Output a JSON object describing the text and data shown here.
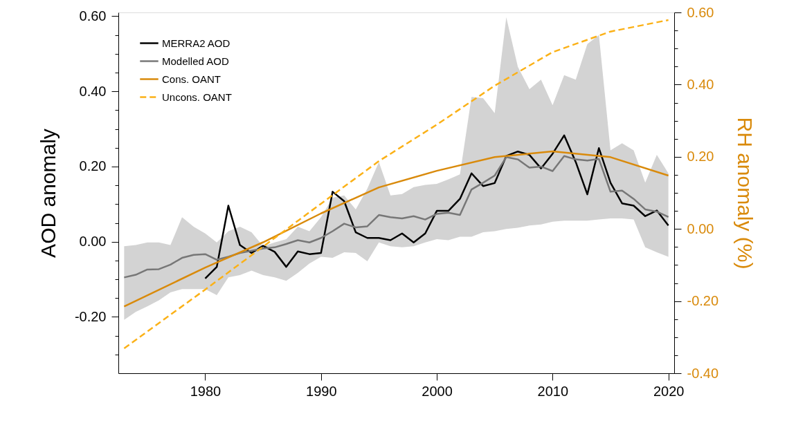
{
  "chart_data": {
    "type": "line",
    "ylabel": "AOD anomaly",
    "y2label": "RH anomaly (%)",
    "x": [
      1973,
      1974,
      1975,
      1976,
      1977,
      1978,
      1979,
      1980,
      1981,
      1982,
      1983,
      1984,
      1985,
      1986,
      1987,
      1988,
      1989,
      1990,
      1991,
      1992,
      1993,
      1994,
      1995,
      1996,
      1997,
      1998,
      1999,
      2000,
      2001,
      2002,
      2003,
      2004,
      2005,
      2006,
      2007,
      2008,
      2009,
      2010,
      2011,
      2012,
      2013,
      2014,
      2015,
      2016,
      2017,
      2018,
      2019,
      2020
    ],
    "xlim": [
      1972.5,
      2020.5
    ],
    "xticks": [
      1980,
      1990,
      2000,
      2010,
      2020
    ],
    "ylim": [
      -0.35,
      0.61
    ],
    "yticks": [
      {
        "value": -0.3,
        "label": null
      },
      {
        "value": -0.25,
        "label": null
      },
      {
        "value": -0.2,
        "label": "-0.20"
      },
      {
        "value": -0.15,
        "label": null
      },
      {
        "value": -0.1,
        "label": null
      },
      {
        "value": -0.05,
        "label": null
      },
      {
        "value": 0,
        "label": "0.00"
      },
      {
        "value": 0.05,
        "label": null
      },
      {
        "value": 0.1,
        "label": null
      },
      {
        "value": 0.15,
        "label": null
      },
      {
        "value": 0.2,
        "label": "0.20"
      },
      {
        "value": 0.25,
        "label": null
      },
      {
        "value": 0.3,
        "label": null
      },
      {
        "value": 0.35,
        "label": null
      },
      {
        "value": 0.4,
        "label": "0.40"
      },
      {
        "value": 0.45,
        "label": null
      },
      {
        "value": 0.5,
        "label": null
      },
      {
        "value": 0.55,
        "label": null
      },
      {
        "value": 0.6,
        "label": "0.60"
      }
    ],
    "y2lim": [
      -0.4,
      0.6
    ],
    "y2ticks": [
      {
        "value": -0.4,
        "label": "-0.40"
      },
      {
        "value": -0.35,
        "label": null
      },
      {
        "value": -0.3,
        "label": null
      },
      {
        "value": -0.25,
        "label": null
      },
      {
        "value": -0.2,
        "label": "-0.20"
      },
      {
        "value": -0.15,
        "label": null
      },
      {
        "value": -0.1,
        "label": null
      },
      {
        "value": -0.05,
        "label": null
      },
      {
        "value": 0,
        "label": "0.00"
      },
      {
        "value": 0.05,
        "label": null
      },
      {
        "value": 0.1,
        "label": null
      },
      {
        "value": 0.15,
        "label": null
      },
      {
        "value": 0.2,
        "label": "0.20"
      },
      {
        "value": 0.25,
        "label": null
      },
      {
        "value": 0.3,
        "label": null
      },
      {
        "value": 0.35,
        "label": null
      },
      {
        "value": 0.4,
        "label": "0.40"
      },
      {
        "value": 0.45,
        "label": null
      },
      {
        "value": 0.5,
        "label": null
      },
      {
        "value": 0.55,
        "label": null
      },
      {
        "value": 0.6,
        "label": "0.60"
      }
    ],
    "grid": false,
    "legend": "top left",
    "series": [
      {
        "name": "MERRA2 AOD",
        "color": "#000000",
        "line_style": "solid",
        "x": [
          1980,
          1981,
          1982,
          1983,
          1984,
          1985,
          1986,
          1987,
          1988,
          1989,
          1990,
          1991,
          1992,
          1993,
          1994,
          1995,
          1996,
          1997,
          1998,
          1999,
          2000,
          2001,
          2002,
          2003,
          2004,
          2005,
          2006,
          2007,
          2008,
          2009,
          2010,
          2011,
          2012,
          2013,
          2014,
          2015,
          2016,
          2017,
          2018,
          2019,
          2020
        ],
        "values": [
          -0.098,
          -0.067,
          0.096,
          -0.009,
          -0.03,
          -0.011,
          -0.027,
          -0.067,
          -0.026,
          -0.033,
          -0.03,
          0.133,
          0.108,
          0.025,
          0.01,
          0.01,
          0.004,
          0.022,
          -0.002,
          0.022,
          0.082,
          0.082,
          0.114,
          0.182,
          0.148,
          0.156,
          0.228,
          0.24,
          0.231,
          0.195,
          0.234,
          0.283,
          0.212,
          0.126,
          0.249,
          0.157,
          0.102,
          0.096,
          0.068,
          0.083,
          0.043
        ]
      },
      {
        "name": "Modelled AOD",
        "color": "#777777",
        "line_style": "solid",
        "values": [
          -0.095,
          -0.088,
          -0.074,
          -0.073,
          -0.061,
          -0.043,
          -0.035,
          -0.033,
          -0.048,
          -0.04,
          -0.03,
          -0.024,
          -0.018,
          -0.015,
          -0.006,
          0.004,
          -0.002,
          0.01,
          0.028,
          0.048,
          0.038,
          0.041,
          0.071,
          0.065,
          0.062,
          0.068,
          0.059,
          0.074,
          0.077,
          0.071,
          0.139,
          0.157,
          0.176,
          0.225,
          0.219,
          0.197,
          0.2,
          0.188,
          0.228,
          0.219,
          0.216,
          0.22,
          0.133,
          0.136,
          0.114,
          0.086,
          0.08,
          0.066
        ],
        "lower": [
          -0.208,
          -0.187,
          -0.172,
          -0.156,
          -0.135,
          -0.126,
          -0.126,
          -0.126,
          -0.142,
          -0.095,
          -0.089,
          -0.077,
          -0.089,
          -0.095,
          -0.104,
          -0.083,
          -0.058,
          -0.04,
          -0.043,
          -0.028,
          -0.03,
          -0.052,
          -0.002,
          -0.012,
          -0.015,
          -0.012,
          -0.002,
          0.007,
          0.004,
          0.013,
          0.013,
          0.025,
          0.028,
          0.034,
          0.037,
          0.043,
          0.046,
          0.053,
          0.056,
          0.056,
          0.056,
          0.059,
          0.062,
          0.062,
          0.059,
          -0.015,
          -0.028,
          -0.04
        ],
        "upper": [
          -0.012,
          -0.009,
          -0.002,
          -0.002,
          -0.009,
          0.065,
          0.04,
          0.022,
          -0.002,
          0.028,
          0.04,
          0.025,
          -0.012,
          -0.002,
          0.007,
          0.04,
          0.028,
          0.065,
          0.117,
          0.123,
          0.086,
          0.141,
          0.212,
          0.123,
          0.127,
          0.145,
          0.151,
          0.154,
          0.166,
          0.179,
          0.385,
          0.382,
          0.342,
          0.597,
          0.465,
          0.406,
          0.431,
          0.363,
          0.443,
          0.431,
          0.526,
          0.55,
          0.243,
          0.262,
          0.243,
          0.157,
          0.231,
          0.182
        ]
      },
      {
        "name": "Cons. OANT",
        "color": "#d98a0b",
        "line_style": "solid",
        "axis": "y2",
        "x": [
          1973,
          1980,
          1985,
          1990,
          1995,
          2000,
          2005,
          2010,
          2015,
          2020
        ],
        "values": [
          -0.215,
          -0.107,
          -0.037,
          0.043,
          0.115,
          0.161,
          0.199,
          0.215,
          0.199,
          0.148
        ]
      },
      {
        "name": "Uncons. OANT",
        "color": "#fbb117",
        "line_style": "dashed",
        "axis": "y2",
        "x": [
          1973,
          1980,
          1985,
          1990,
          1995,
          2000,
          2005,
          2010,
          2015,
          2020
        ],
        "values": [
          -0.331,
          -0.168,
          -0.049,
          0.07,
          0.188,
          0.289,
          0.397,
          0.49,
          0.547,
          0.579
        ]
      }
    ]
  }
}
